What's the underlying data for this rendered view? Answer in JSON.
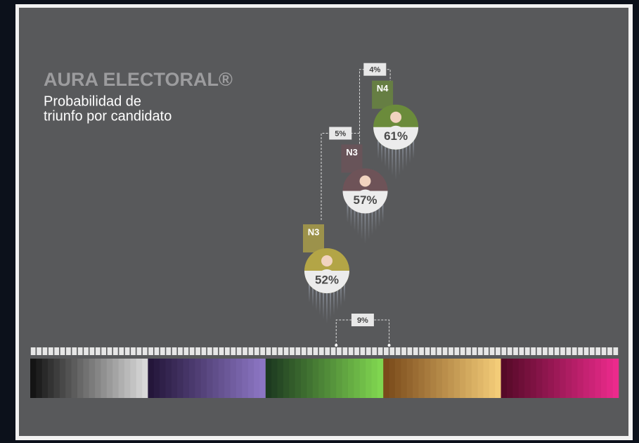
{
  "header": {
    "title": "AURA ELECTORAL®",
    "subtitle": [
      "Probabilidad de",
      "triunfo por candidato"
    ]
  },
  "candidates": [
    {
      "level": "N3",
      "probability": 52,
      "label": "52%",
      "color": "#b3a546"
    },
    {
      "level": "N3",
      "probability": 57,
      "label": "57%",
      "color": "#6e5358"
    },
    {
      "level": "N4",
      "probability": 61,
      "label": "61%",
      "color": "#6b8b3b"
    }
  ],
  "gaps": [
    {
      "label": "5%"
    },
    {
      "label": "4%"
    },
    {
      "label": "9%"
    }
  ],
  "scale": {
    "min": 0,
    "max": 100,
    "groups": [
      {
        "from": "#141414",
        "to": "#d8d8d8"
      },
      {
        "from": "#24163a",
        "to": "#8c76c4"
      },
      {
        "from": "#1d3a20",
        "to": "#80d650"
      },
      {
        "from": "#7a4a1a",
        "to": "#f3cc78"
      },
      {
        "from": "#560a28",
        "to": "#ec2a8c"
      }
    ]
  }
}
